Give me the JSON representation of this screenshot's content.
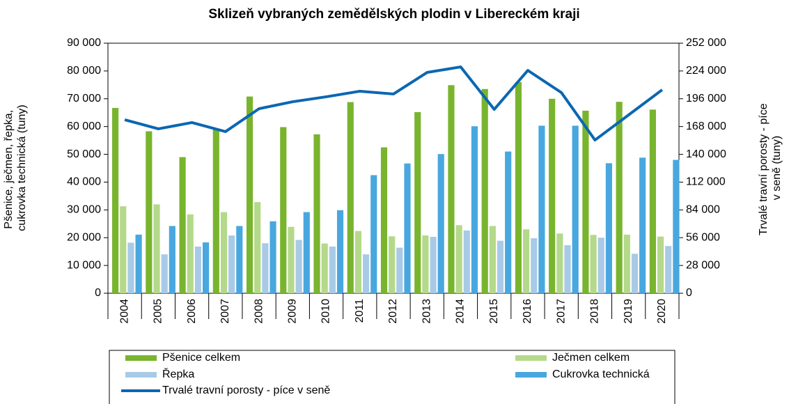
{
  "chart_data": {
    "type": "bar",
    "title": "Sklizeň vybraných zemědělských plodin v Libereckém kraji",
    "ylabel": [
      "Pšenice, ječmen, řepka,",
      "cukrovka technická  (tuny)"
    ],
    "y2label": [
      "Trvalé travní porosty - píce",
      "v seně (tuny)"
    ],
    "categories": [
      "2004",
      "2005",
      "2006",
      "2007",
      "2008",
      "2009",
      "2010",
      "2011",
      "2012",
      "2013",
      "2014",
      "2015",
      "2016",
      "2017",
      "2018",
      "2019",
      "2020"
    ],
    "series": [
      {
        "name": "Pšenice celkem",
        "type": "bar",
        "color": "#79b42e",
        "values": [
          66700,
          58300,
          49000,
          59000,
          70800,
          59800,
          57200,
          68800,
          52500,
          65200,
          74900,
          73500,
          76000,
          70000,
          65700,
          68900,
          66100
        ]
      },
      {
        "name": "Ječmen celkem",
        "type": "bar",
        "color": "#b4d98a",
        "values": [
          31300,
          32000,
          28400,
          29200,
          32800,
          23900,
          17900,
          22400,
          20500,
          20800,
          24500,
          24200,
          23000,
          21500,
          21000,
          21100,
          20400
        ]
      },
      {
        "name": "Řepka",
        "type": "bar",
        "color": "#a8cae6",
        "values": [
          18200,
          14000,
          16800,
          20800,
          18000,
          19200,
          16800,
          14000,
          16400,
          20300,
          22600,
          18900,
          19800,
          17300,
          20000,
          14200,
          17000
        ]
      },
      {
        "name": "Cukrovka technická",
        "type": "bar",
        "color": "#49a7df",
        "values": [
          21100,
          24200,
          18300,
          24200,
          25900,
          29200,
          29900,
          42500,
          46700,
          50100,
          60100,
          51000,
          60300,
          60300,
          46800,
          48800,
          48000
        ]
      },
      {
        "name": "Trvalé travní porosty - píce v seně",
        "type": "line",
        "axis": "y2",
        "color": "#0b67b2",
        "values": [
          174800,
          165700,
          172000,
          162900,
          186000,
          193000,
          198000,
          203600,
          200800,
          222500,
          228100,
          185300,
          224600,
          202200,
          154400,
          179700,
          205000
        ]
      }
    ],
    "ylim": [
      0,
      90000
    ],
    "yticks": [
      0,
      {
        "value": 10000,
        "label": "10 000"
      },
      {
        "value": 20000,
        "label": "20 000"
      },
      {
        "value": 30000,
        "label": "30 000"
      },
      {
        "value": 40000,
        "label": "40 000"
      },
      {
        "value": 50000,
        "label": "50 000"
      },
      {
        "value": 60000,
        "label": "60 000"
      },
      {
        "value": 70000,
        "label": "70 000"
      },
      {
        "value": 80000,
        "label": "80 000"
      },
      {
        "value": 90000,
        "label": "90 000"
      }
    ],
    "y2lim": [
      0,
      252000
    ],
    "y2ticks": [
      0,
      {
        "value": 28000,
        "label": "28 000"
      },
      {
        "value": 56000,
        "label": "56 000"
      },
      {
        "value": 84000,
        "label": "84 000"
      },
      {
        "value": 112000,
        "label": "112 000"
      },
      {
        "value": 140000,
        "label": "140 000"
      },
      {
        "value": 168000,
        "label": "168 000"
      },
      {
        "value": 196000,
        "label": "196 000"
      },
      {
        "value": 224000,
        "label": "224 000"
      },
      {
        "value": 252000,
        "label": "252 000"
      }
    ],
    "grid": false
  }
}
